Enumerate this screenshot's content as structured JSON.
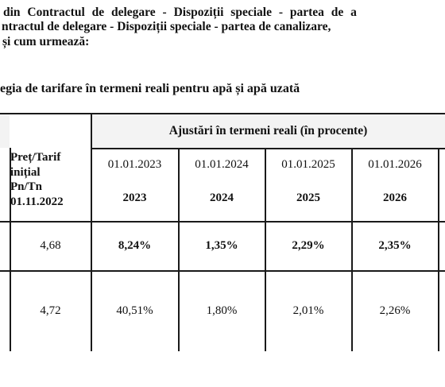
{
  "text_lines": {
    "line1": "din Contractul de delegare - Dispoziții speciale - partea de a",
    "line2": "ntractul de delegare - Dispoziții speciale - partea de canalizare,",
    "line3": "și cum urmează:",
    "subtitle": "egia de tarifare în termeni reali pentru apă și apă uzată"
  },
  "table": {
    "group_header": "Ajustări în termeni reali (în procente)",
    "tarif_header": [
      "Preț/Tarif",
      "inițial",
      "Pn/Tn",
      "01.11.2022"
    ],
    "date_headers": [
      "01.01.2023",
      "01.01.2024",
      "01.01.2025",
      "01.01.2026"
    ],
    "year_headers": [
      "2023",
      "2024",
      "2025",
      "2026"
    ],
    "rows": [
      {
        "initial": "4,68",
        "values": [
          "8,24%",
          "1,35%",
          "2,29%",
          "2,35%"
        ]
      },
      {
        "initial": "4,72",
        "values": [
          "40,51%",
          "1,80%",
          "2,01%",
          "2,26%"
        ]
      }
    ]
  }
}
